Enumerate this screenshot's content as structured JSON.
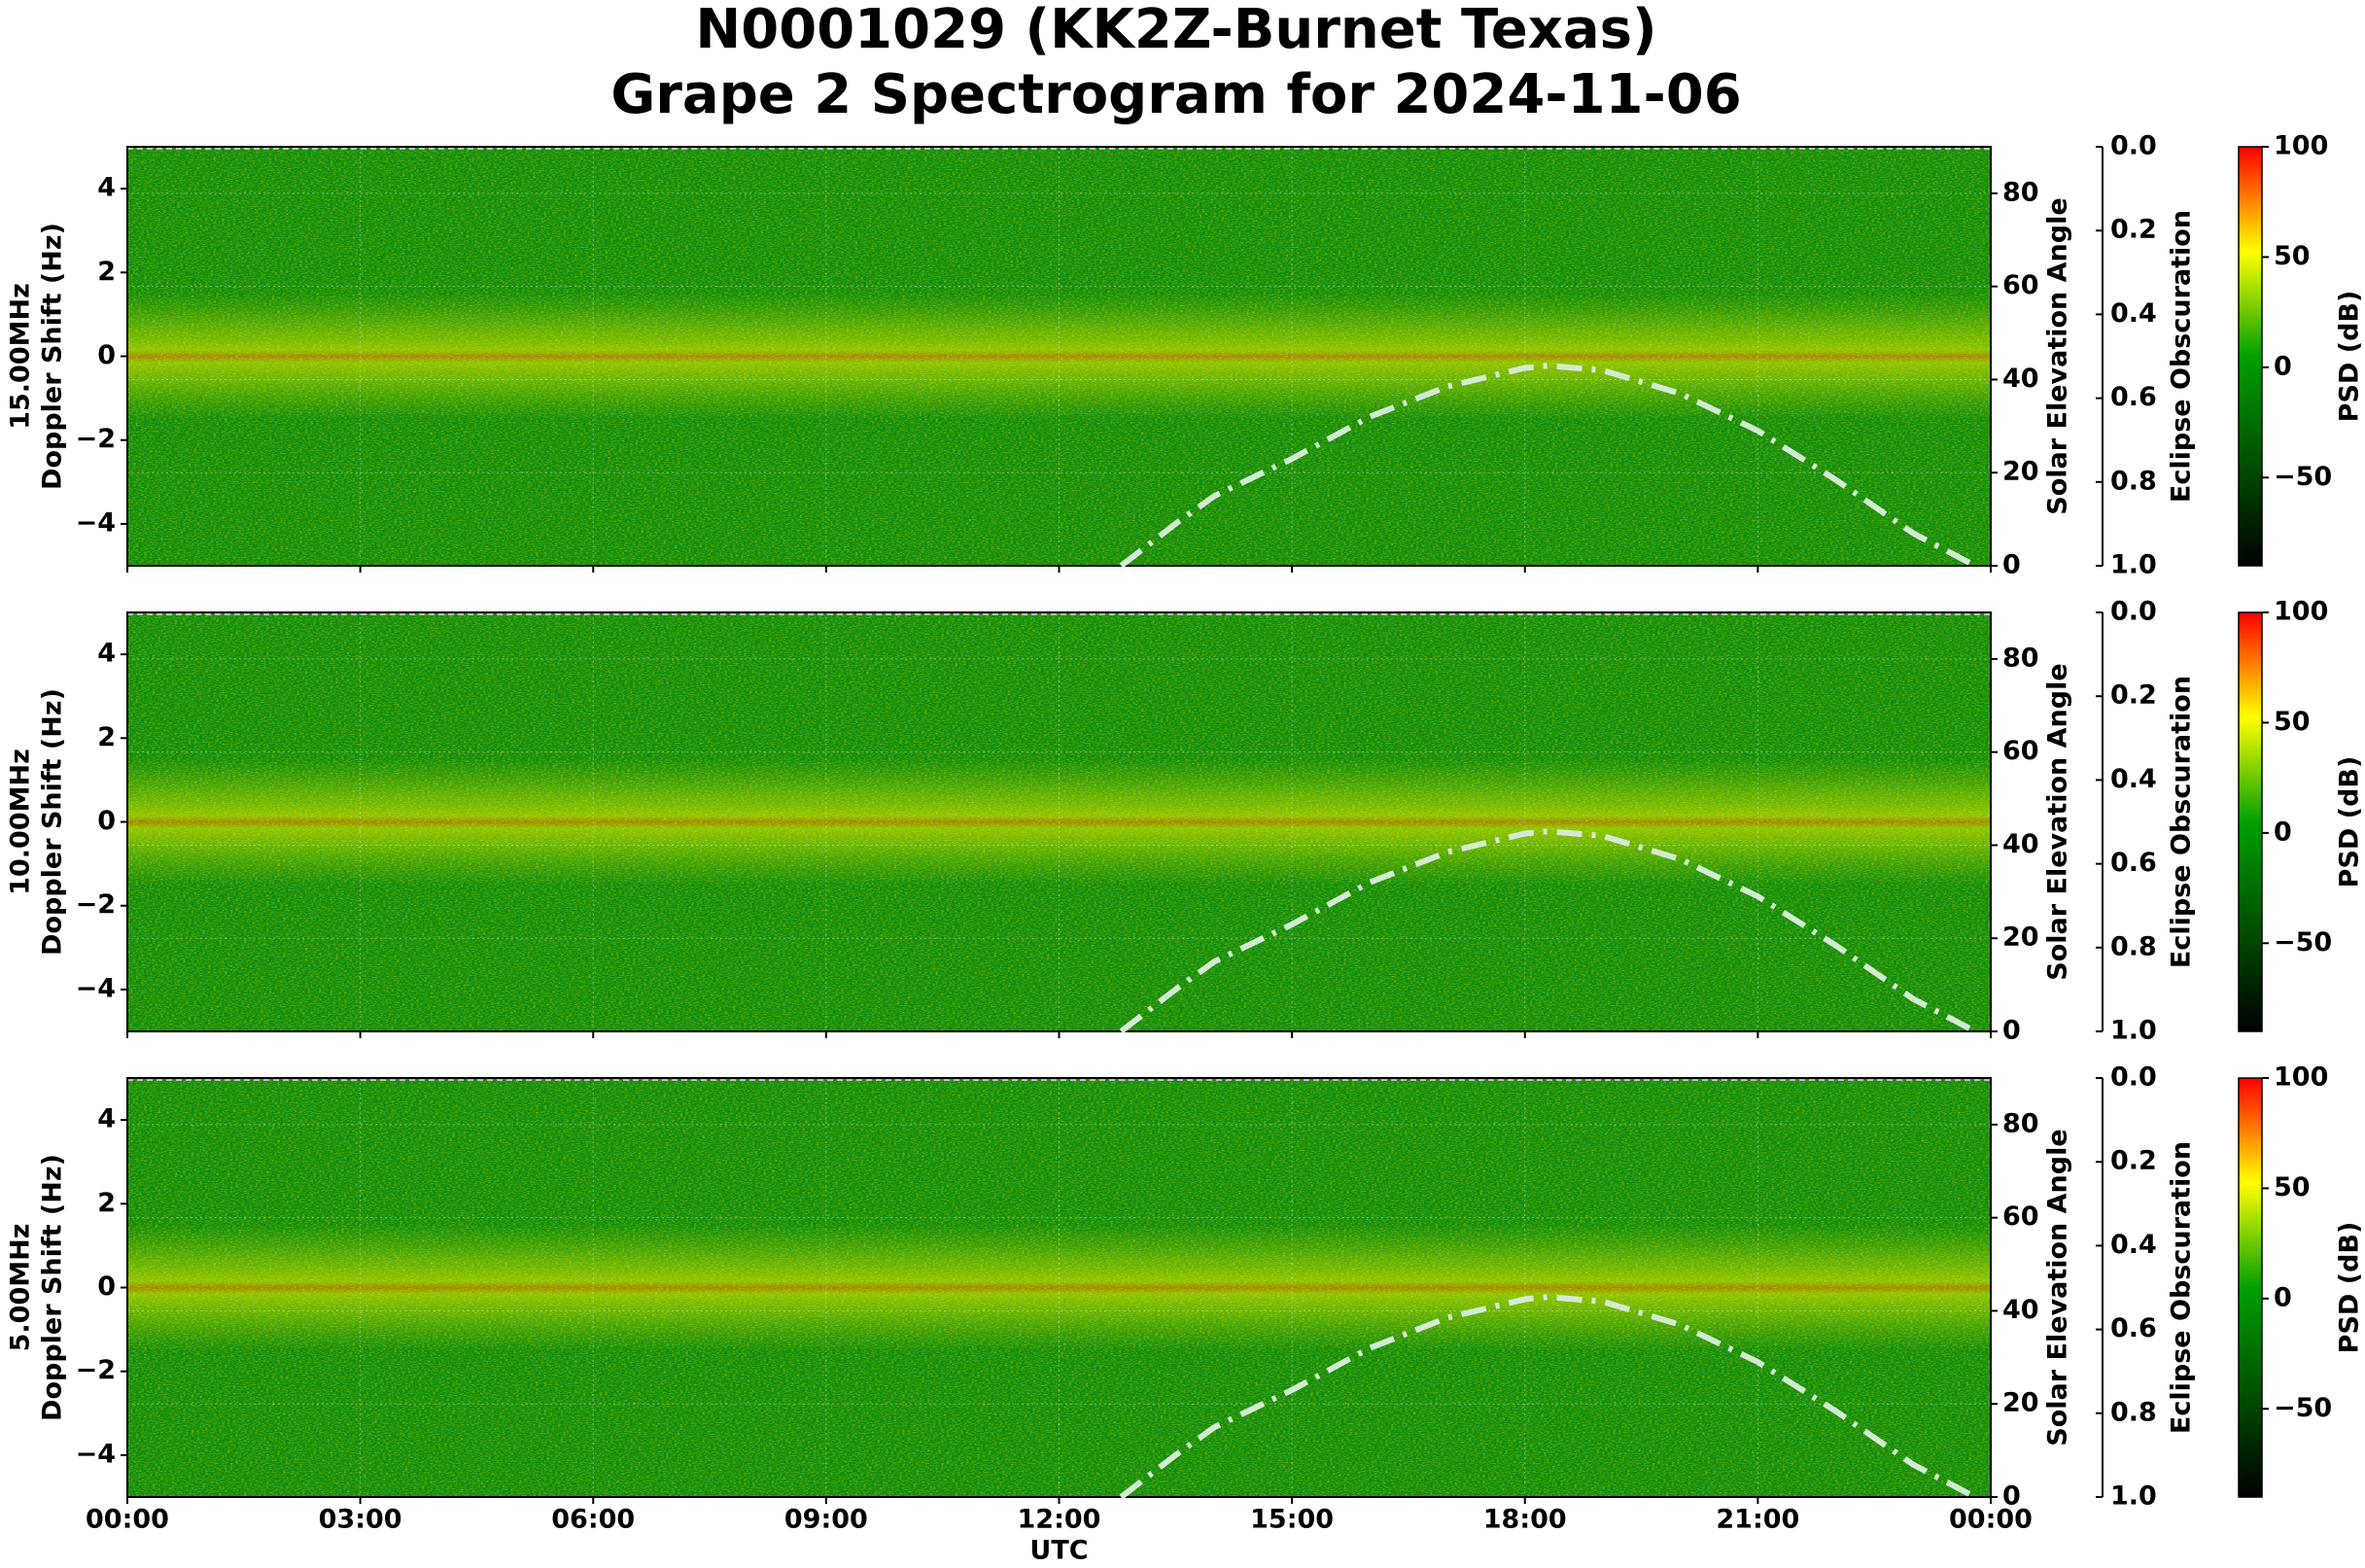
{
  "header": {
    "title": "N0001029 (KK2Z-Burnet Texas)",
    "subtitle": "Grape 2 Spectrogram for 2024-11-06"
  },
  "chart_data": [
    {
      "type": "spectrogram",
      "frequency_label": "15.00MHz",
      "ylabel": "Doppler Shift (Hz)",
      "xlim": [
        0,
        24
      ],
      "xticks": [
        0,
        3,
        6,
        9,
        12,
        15,
        18,
        21,
        24
      ],
      "ylim": [
        -5,
        5
      ],
      "yticks": [
        {
          "value": -4,
          "label": "−4"
        },
        {
          "value": -2,
          "label": "−2"
        },
        0,
        2,
        4
      ],
      "y2label": "Solar Elevation Angle",
      "y2lim": [
        0,
        90
      ],
      "y2ticks": [
        0,
        20,
        40,
        60,
        80
      ],
      "y3label": "Eclipse Obscuration",
      "y3lim": [
        0,
        1
      ],
      "y3_inverted": true,
      "y3ticks": [
        {
          "value": 0,
          "label": "0.0"
        },
        {
          "value": 0.2,
          "label": "0.2"
        },
        {
          "value": 0.4,
          "label": "0.4"
        },
        {
          "value": 0.6,
          "label": "0.6"
        },
        {
          "value": 0.8,
          "label": "0.8"
        },
        {
          "value": 1,
          "label": "1.0"
        }
      ],
      "grid": true,
      "x": [
        12.8,
        13.5,
        14,
        15,
        16,
        17,
        18,
        18.3,
        19,
        20,
        21,
        22,
        23,
        23.8
      ],
      "series": [
        {
          "color": "#d4ead4",
          "axis": "y2",
          "line_style": "dash-dot",
          "values": [
            0,
            9,
            15,
            23,
            32,
            38.5,
            42.5,
            43,
            42,
            37,
            29,
            18.5,
            7,
            0
          ]
        }
      ],
      "colorbar": {
        "label": "PSD (dB)",
        "lim": [
          -90,
          100
        ],
        "ticks": [
          {
            "value": -50,
            "label": "−50"
          },
          0,
          50,
          100
        ],
        "colors": [
          "#000000",
          "#005000",
          "#00a000",
          "#ffff00",
          "#ff0000"
        ]
      }
    },
    {
      "type": "spectrogram",
      "frequency_label": "10.00MHz",
      "ylabel": "Doppler Shift (Hz)",
      "xlim": [
        0,
        24
      ],
      "xticks": [
        0,
        3,
        6,
        9,
        12,
        15,
        18,
        21,
        24
      ],
      "ylim": [
        -5,
        5
      ],
      "yticks": [
        {
          "value": -4,
          "label": "−4"
        },
        {
          "value": -2,
          "label": "−2"
        },
        0,
        2,
        4
      ],
      "y2label": "Solar Elevation Angle",
      "y2lim": [
        0,
        90
      ],
      "y2ticks": [
        0,
        20,
        40,
        60,
        80
      ],
      "y3label": "Eclipse Obscuration",
      "y3lim": [
        0,
        1
      ],
      "y3_inverted": true,
      "y3ticks": [
        {
          "value": 0,
          "label": "0.0"
        },
        {
          "value": 0.2,
          "label": "0.2"
        },
        {
          "value": 0.4,
          "label": "0.4"
        },
        {
          "value": 0.6,
          "label": "0.6"
        },
        {
          "value": 0.8,
          "label": "0.8"
        },
        {
          "value": 1,
          "label": "1.0"
        }
      ],
      "grid": true,
      "x": [
        12.8,
        13.5,
        14,
        15,
        16,
        17,
        18,
        18.3,
        19,
        20,
        21,
        22,
        23,
        23.8
      ],
      "series": [
        {
          "color": "#d4ead4",
          "axis": "y2",
          "line_style": "dash-dot",
          "values": [
            0,
            9,
            15,
            23,
            32,
            38.5,
            42.5,
            43,
            42,
            37,
            29,
            18.5,
            7,
            0
          ]
        }
      ],
      "colorbar": {
        "label": "PSD (dB)",
        "lim": [
          -90,
          100
        ],
        "ticks": [
          {
            "value": -50,
            "label": "−50"
          },
          0,
          50,
          100
        ],
        "colors": [
          "#000000",
          "#005000",
          "#00a000",
          "#ffff00",
          "#ff0000"
        ]
      }
    },
    {
      "type": "spectrogram",
      "frequency_label": "5.00MHz",
      "ylabel": "Doppler Shift (Hz)",
      "xlabel": "UTC",
      "xlim": [
        0,
        24
      ],
      "xticks": [
        {
          "value": 0,
          "label": "00:00"
        },
        {
          "value": 3,
          "label": "03:00"
        },
        {
          "value": 6,
          "label": "06:00"
        },
        {
          "value": 9,
          "label": "09:00"
        },
        {
          "value": 12,
          "label": "12:00"
        },
        {
          "value": 15,
          "label": "15:00"
        },
        {
          "value": 18,
          "label": "18:00"
        },
        {
          "value": 21,
          "label": "21:00"
        },
        {
          "value": 24,
          "label": "00:00"
        }
      ],
      "ylim": [
        -5,
        5
      ],
      "yticks": [
        {
          "value": -4,
          "label": "−4"
        },
        {
          "value": -2,
          "label": "−2"
        },
        0,
        2,
        4
      ],
      "y2label": "Solar Elevation Angle",
      "y2lim": [
        0,
        90
      ],
      "y2ticks": [
        0,
        20,
        40,
        60,
        80
      ],
      "y3label": "Eclipse Obscuration",
      "y3lim": [
        0,
        1
      ],
      "y3_inverted": true,
      "y3ticks": [
        {
          "value": 0,
          "label": "0.0"
        },
        {
          "value": 0.2,
          "label": "0.2"
        },
        {
          "value": 0.4,
          "label": "0.4"
        },
        {
          "value": 0.6,
          "label": "0.6"
        },
        {
          "value": 0.8,
          "label": "0.8"
        },
        {
          "value": 1,
          "label": "1.0"
        }
      ],
      "grid": true,
      "x": [
        12.8,
        13.5,
        14,
        15,
        16,
        17,
        18,
        18.3,
        19,
        20,
        21,
        22,
        23,
        23.8
      ],
      "series": [
        {
          "color": "#d4ead4",
          "axis": "y2",
          "line_style": "dash-dot",
          "values": [
            0,
            9,
            15,
            23,
            32,
            38.5,
            42.5,
            43,
            42,
            37,
            29,
            18.5,
            7,
            0
          ]
        }
      ],
      "colorbar": {
        "label": "PSD (dB)",
        "lim": [
          -90,
          100
        ],
        "ticks": [
          {
            "value": -50,
            "label": "−50"
          },
          0,
          50,
          100
        ],
        "colors": [
          "#000000",
          "#005000",
          "#00a000",
          "#ffff00",
          "#ff0000"
        ]
      }
    }
  ]
}
